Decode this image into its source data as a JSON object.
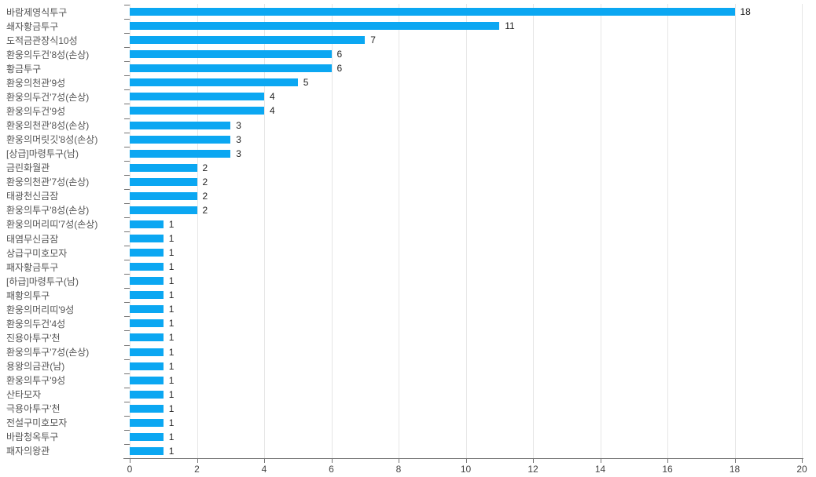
{
  "chart_data": {
    "type": "bar",
    "orientation": "horizontal",
    "title": "",
    "xlabel": "",
    "ylabel": "",
    "categories": [
      "바람제영식투구",
      "쇄자황금투구",
      "도적금관장식10성",
      "환웅의두건'8성(손상)",
      "황금투구",
      "환웅의천관'9성",
      "환웅의두건'7성(손상)",
      "환웅의두건'9성",
      "환웅의천관'8성(손상)",
      "환웅의머릿깃'8성(손상)",
      "[상급]마령투구(남)",
      "금린화월관",
      "환웅의천관'7성(손상)",
      "태광천신금잠",
      "환웅의투구'8성(손상)",
      "환웅의머리띠'7성(손상)",
      "태염무신금잠",
      "상급구미호모자",
      "패자황금투구",
      "[하급]마령투구(남)",
      "패황의투구",
      "환웅의머리띠'9성",
      "환웅의두건'4성",
      "진용아투구'천",
      "환웅의투구'7성(손상)",
      "용왕의금관(남)",
      "환웅의투구'9성",
      "산타모자",
      "극용아투구'천",
      "전설구미호모자",
      "바람청옥투구",
      "패자의왕관"
    ],
    "values": [
      18,
      11,
      7,
      6,
      6,
      5,
      4,
      4,
      3,
      3,
      3,
      2,
      2,
      2,
      2,
      1,
      1,
      1,
      1,
      1,
      1,
      1,
      1,
      1,
      1,
      1,
      1,
      1,
      1,
      1,
      1,
      1
    ],
    "value_labels_shown": true,
    "xlim": [
      0,
      20
    ],
    "x_ticks": [
      0,
      2,
      4,
      6,
      8,
      10,
      12,
      14,
      16,
      18,
      20
    ],
    "grid": "vertical",
    "legend": "none"
  },
  "colors": {
    "bar": "#0ba7f2",
    "gridline": "#e6e6e6",
    "axis_line": "#757575",
    "category_label": "#545454",
    "value_label": "#222222",
    "tick_label": "#444444",
    "background": "#ffffff"
  }
}
